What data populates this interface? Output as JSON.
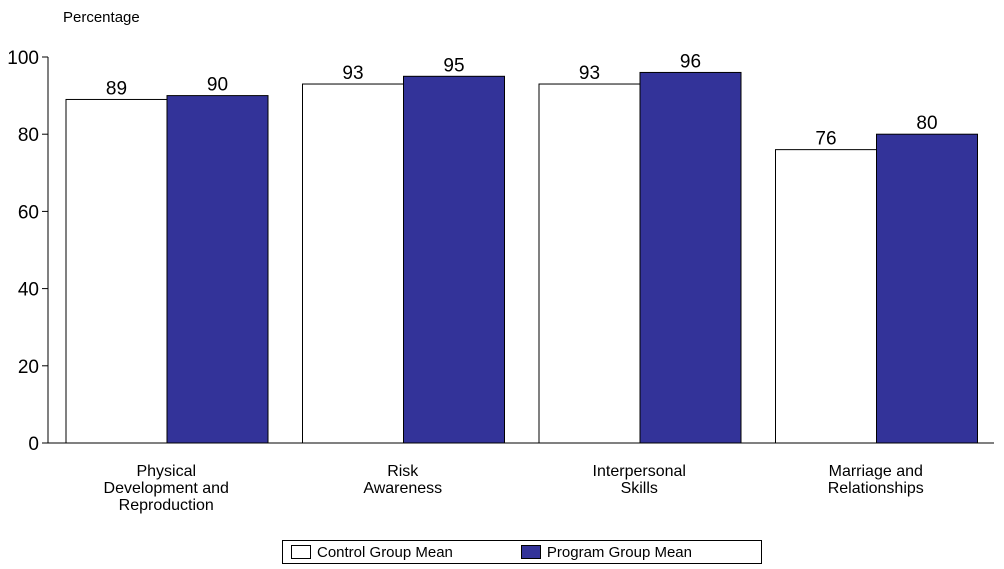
{
  "chart_data": {
    "type": "bar",
    "ylabel": "Percentage",
    "ylim": [
      0,
      100
    ],
    "yticks": [
      0,
      20,
      40,
      60,
      80,
      100
    ],
    "categories": [
      [
        "Physical",
        "Development and",
        "Reproduction"
      ],
      [
        "Risk",
        "Awareness"
      ],
      [
        "Interpersonal",
        "Skills"
      ],
      [
        "Marriage and",
        "Relationships"
      ]
    ],
    "series": [
      {
        "name": "Control Group Mean",
        "values": [
          89,
          93,
          93,
          76
        ],
        "color": "#ffffff"
      },
      {
        "name": "Program Group Mean",
        "values": [
          90,
          95,
          96,
          80
        ],
        "color": "#333399"
      }
    ],
    "data_labels": true,
    "grid": false,
    "legend_position": "bottom"
  }
}
